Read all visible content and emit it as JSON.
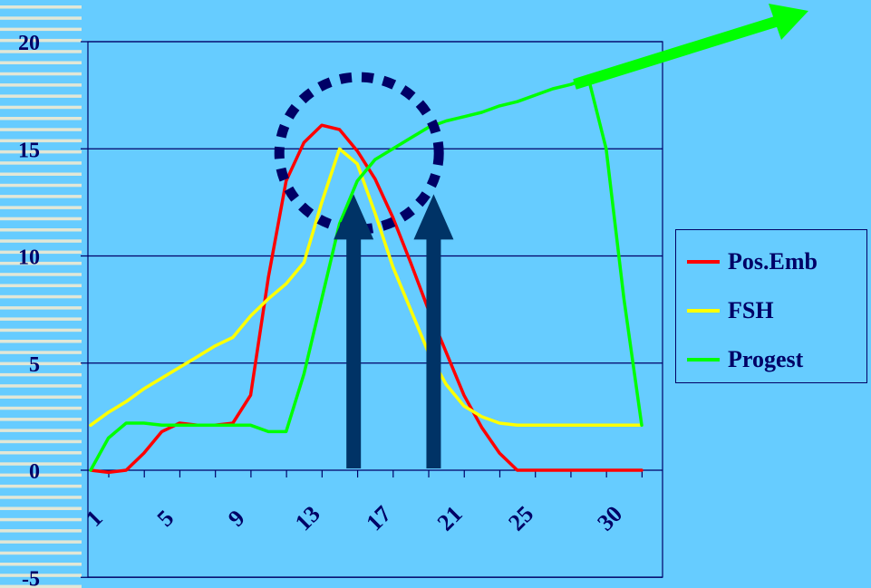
{
  "chart_data": {
    "type": "line",
    "title": "",
    "xlabel": "",
    "ylabel": "",
    "ylim": [
      -5,
      20
    ],
    "xlim": [
      1,
      32
    ],
    "y_ticks": [
      "20",
      "15",
      "10",
      "5",
      "0",
      "-5"
    ],
    "x_ticks": [
      "1",
      "5",
      "9",
      "13",
      "17",
      "21",
      "25",
      "30"
    ],
    "grid": "horizontal",
    "legend_position": "right",
    "series": [
      {
        "name": "Pos.Emb",
        "color": "#ff0000",
        "x": [
          1,
          2,
          3,
          4,
          5,
          6,
          7,
          8,
          9,
          10,
          11,
          12,
          13,
          14,
          15,
          16,
          17,
          18,
          19,
          20,
          21,
          22,
          23,
          24,
          25,
          26,
          27,
          28,
          29,
          30,
          31,
          32
        ],
        "values": [
          0,
          -0.1,
          0,
          0.8,
          1.8,
          2.2,
          2.1,
          2.1,
          2.2,
          3.5,
          9,
          13.5,
          15.3,
          16.1,
          15.9,
          14.9,
          13.6,
          11.8,
          9.7,
          7.5,
          5.5,
          3.5,
          2,
          0.8,
          0,
          0,
          0,
          0,
          0,
          0,
          0,
          0
        ]
      },
      {
        "name": "FSH",
        "color": "#ffff00",
        "x": [
          1,
          2,
          3,
          4,
          5,
          6,
          7,
          8,
          9,
          10,
          11,
          12,
          13,
          14,
          15,
          16,
          17,
          18,
          19,
          20,
          21,
          22,
          23,
          24,
          25,
          26,
          27,
          28,
          29,
          30,
          31,
          32
        ],
        "values": [
          2.1,
          2.7,
          3.2,
          3.8,
          4.3,
          4.8,
          5.3,
          5.8,
          6.2,
          7.2,
          8,
          8.7,
          9.7,
          12.5,
          15,
          14.3,
          12,
          9.5,
          7.5,
          5.5,
          4,
          3,
          2.5,
          2.2,
          2.1,
          2.1,
          2.1,
          2.1,
          2.1,
          2.1,
          2.1,
          2.1
        ]
      },
      {
        "name": "Progest",
        "color": "#00ff00",
        "x": [
          1,
          2,
          3,
          4,
          5,
          6,
          7,
          8,
          9,
          10,
          11,
          12,
          13,
          14,
          15,
          16,
          17,
          18,
          19,
          20,
          21,
          22,
          23,
          24,
          25,
          26,
          27,
          28,
          29,
          30,
          31,
          32
        ],
        "values": [
          0,
          1.5,
          2.2,
          2.2,
          2.1,
          2.1,
          2.1,
          2.1,
          2.1,
          2.1,
          1.8,
          1.8,
          4.5,
          8,
          11.5,
          13.5,
          14.5,
          15,
          15.5,
          16,
          16.3,
          16.5,
          16.7,
          17,
          17.2,
          17.5,
          17.8,
          18,
          18.3,
          15,
          8,
          2.1
        ]
      }
    ],
    "annotations": [
      {
        "type": "dotted-circle",
        "color": "#000066",
        "center_x": 16,
        "center_y": 14.5,
        "note": ""
      },
      {
        "type": "up-arrow",
        "color": "#003366",
        "x": 16,
        "from_y": 0,
        "to_y": 9.5
      },
      {
        "type": "up-arrow",
        "color": "#003366",
        "x": 20.5,
        "from_y": 0,
        "to_y": 9.5
      },
      {
        "type": "trend-arrow",
        "color": "#00ff00",
        "from": [
          28.5,
          18.3
        ],
        "to": [
          34.5,
          21.2
        ]
      }
    ]
  }
}
